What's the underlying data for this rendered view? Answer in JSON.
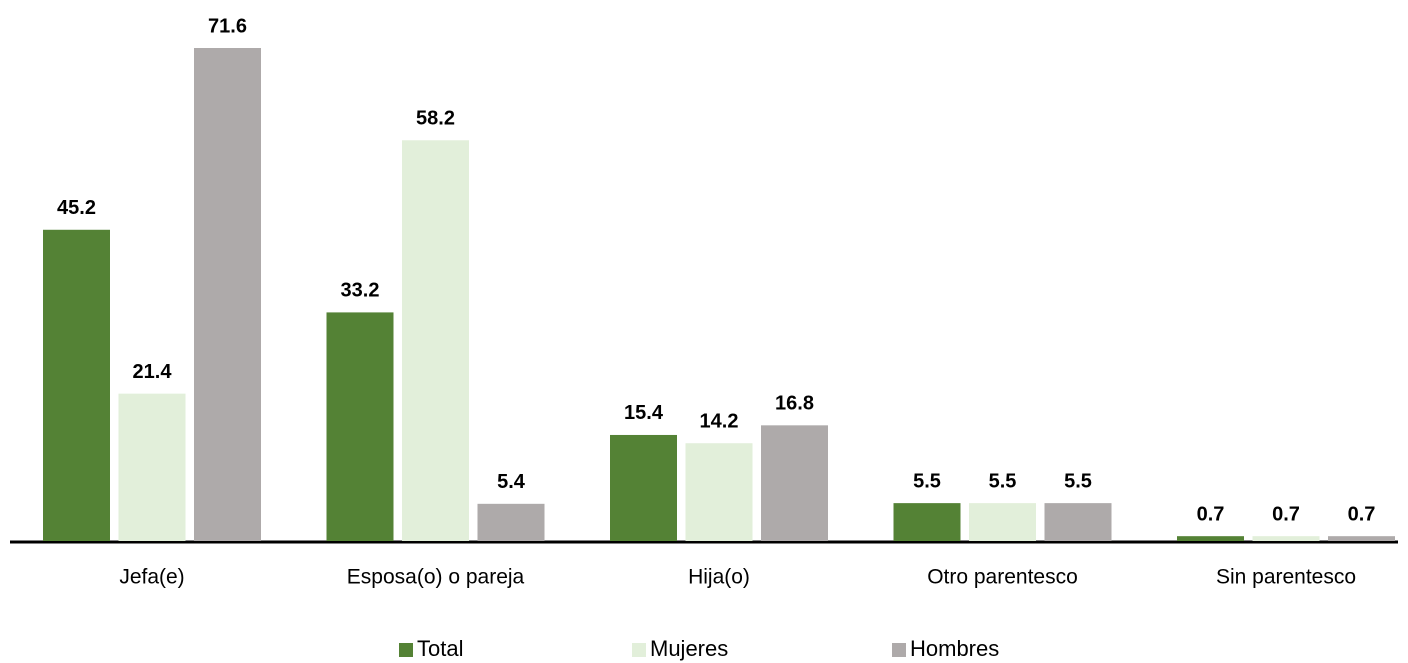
{
  "chart_data": {
    "type": "bar",
    "categories": [
      "Jefa(e)",
      "Esposa(o) o pareja",
      "Hija(o)",
      "Otro parentesco",
      "Sin parentesco"
    ],
    "series": [
      {
        "name": "Total",
        "color": "#548235",
        "values": [
          45.2,
          33.2,
          15.4,
          5.5,
          0.7
        ]
      },
      {
        "name": "Mujeres",
        "color": "#e2efda",
        "values": [
          21.4,
          58.2,
          14.2,
          5.5,
          0.7
        ]
      },
      {
        "name": "Hombres",
        "color": "#aeaaaa",
        "values": [
          71.6,
          5.4,
          16.8,
          5.5,
          0.7
        ]
      }
    ],
    "legend": "bottom"
  }
}
